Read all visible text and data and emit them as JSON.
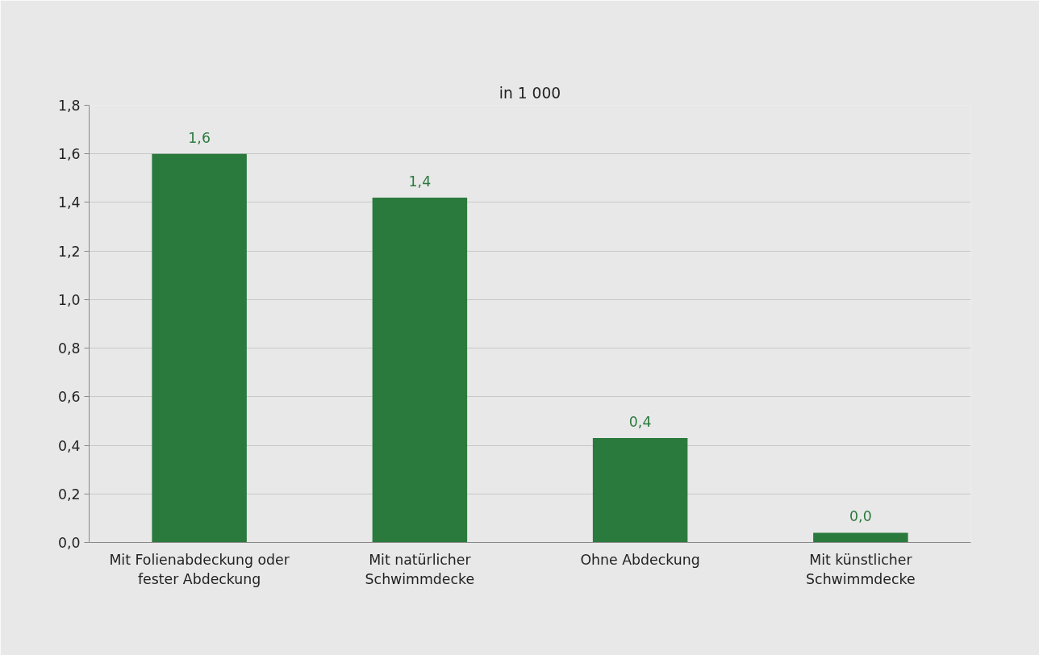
{
  "chart_data": {
    "type": "bar",
    "title": "in 1 000",
    "categories": [
      "Mit Folienabdeckung oder fester Abdeckung",
      "Mit natürlicher Schwimmdecke",
      "Ohne Abdeckung",
      "Mit künstlicher Schwimmdecke"
    ],
    "values": [
      1.6,
      1.42,
      0.43,
      0.04
    ],
    "value_labels": [
      "1,6",
      "1,4",
      "0,4",
      "0,0"
    ],
    "color": "#2b7a3d",
    "ylim": [
      0,
      1.8
    ],
    "yticks": [
      {
        "value": 0,
        "label": "0,0"
      },
      {
        "value": 0.2,
        "label": "0,2"
      },
      {
        "value": 0.4,
        "label": "0,4"
      },
      {
        "value": 0.6,
        "label": "0,6"
      },
      {
        "value": 0.8,
        "label": "0,8"
      },
      {
        "value": 1.0,
        "label": "1,0"
      },
      {
        "value": 1.2,
        "label": "1,2"
      },
      {
        "value": 1.4,
        "label": "1,4"
      },
      {
        "value": 1.6,
        "label": "1,6"
      },
      {
        "value": 1.8,
        "label": "1,8"
      }
    ],
    "grid": "y"
  }
}
